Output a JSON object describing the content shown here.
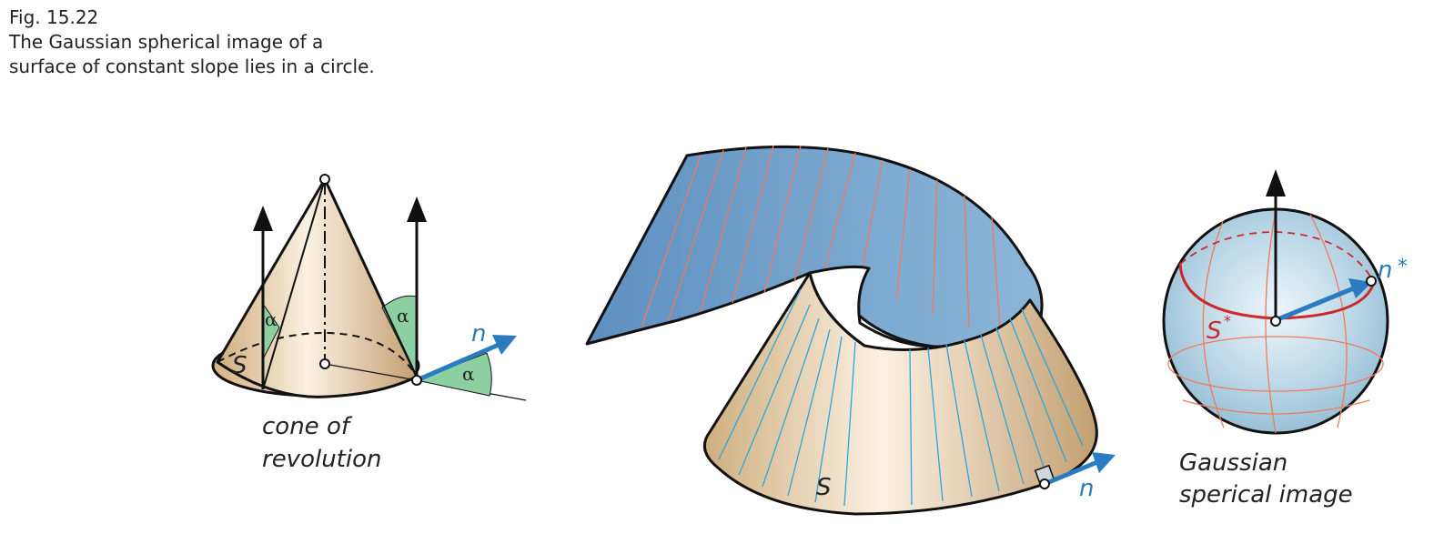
{
  "caption": {
    "fig": "Fig. 15.22",
    "line1": "The Gaussian spherical image of a",
    "line2": "surface of constant slope lies in a circle."
  },
  "cone": {
    "label_s": "S",
    "alpha": "α",
    "label_n": "n",
    "caption1": "cone of",
    "caption2": "revolution"
  },
  "surface": {
    "label_s": "S",
    "label_n": "n"
  },
  "sphere": {
    "label_s": "S",
    "label_star": "*",
    "label_n": "n",
    "caption1": "Gaussian",
    "caption2": "sperical image"
  },
  "colors": {
    "cone_fill": "#e6caa0",
    "surface_blue": "#6f9ec8",
    "sphere_blue": "#b9d6e6",
    "alpha_green": "#8ccfa0",
    "normal_blue": "#2a7bbf",
    "circle_red": "#cc2a2a",
    "ruling_orange": "#f07a5a",
    "ruling_cyan": "#2aa6df"
  }
}
